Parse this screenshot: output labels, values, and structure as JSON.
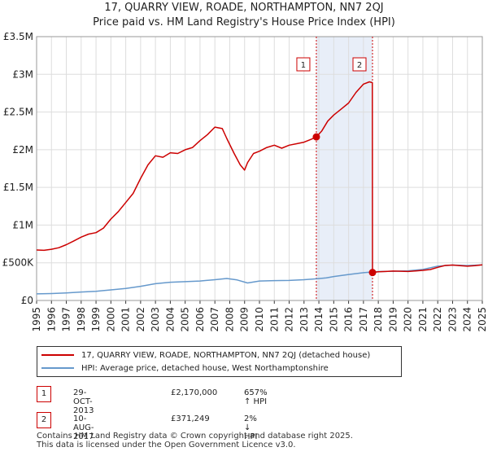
{
  "title_line1": "17, QUARRY VIEW, ROADE, NORTHAMPTON, NN7 2QJ",
  "title_line2": "Price paid vs. HM Land Registry's House Price Index (HPI)",
  "colors": {
    "property": "#cc0000",
    "hpi": "#6699cc",
    "grid": "#dddddd",
    "event_line": "#cc0000"
  },
  "chart_data": {
    "type": "line",
    "xlim": [
      1995,
      2025
    ],
    "ylim": [
      0,
      3500000
    ],
    "y_ticks": [
      0,
      500000,
      1000000,
      1500000,
      2000000,
      2500000,
      3000000,
      3500000
    ],
    "y_tick_labels": [
      "£0",
      "£500K",
      "£1M",
      "£1.5M",
      "£2M",
      "£2.5M",
      "£3M",
      "£3.5M"
    ],
    "x_ticks": [
      1995,
      1996,
      1997,
      1998,
      1999,
      2000,
      2001,
      2002,
      2003,
      2004,
      2005,
      2006,
      2007,
      2008,
      2009,
      2010,
      2011,
      2012,
      2013,
      2014,
      2015,
      2016,
      2017,
      2018,
      2019,
      2020,
      2021,
      2022,
      2023,
      2024,
      2025
    ],
    "x_tick_labels": [
      "1995",
      "1996",
      "1997",
      "1998",
      "1999",
      "2000",
      "2001",
      "2002",
      "2003",
      "2004",
      "2005",
      "2006",
      "2007",
      "2008",
      "2009",
      "2010",
      "2011",
      "2012",
      "2013",
      "2014",
      "2015",
      "2016",
      "2017",
      "2018",
      "2019",
      "2020",
      "2021",
      "2022",
      "2023",
      "2024",
      "2025"
    ],
    "shaded_period": [
      2013.83,
      2017.61
    ],
    "series": [
      {
        "name": "17, QUARRY VIEW, ROADE, NORTHAMPTON, NN7 2QJ (detached house)",
        "color": "#cc0000",
        "x": [
          1995.0,
          1995.5,
          1996.0,
          1996.5,
          1997.0,
          1997.5,
          1998.0,
          1998.5,
          1999.0,
          1999.5,
          2000.0,
          2000.5,
          2001.0,
          2001.5,
          2002.0,
          2002.5,
          2003.0,
          2003.5,
          2004.0,
          2004.5,
          2005.0,
          2005.5,
          2006.0,
          2006.5,
          2007.0,
          2007.5,
          2007.8,
          2008.3,
          2008.7,
          2009.0,
          2009.2,
          2009.6,
          2010.0,
          2010.5,
          2011.0,
          2011.5,
          2012.0,
          2012.5,
          2013.0,
          2013.5,
          2013.83,
          2014.2,
          2014.6,
          2015.0,
          2015.5,
          2016.0,
          2016.5,
          2017.0,
          2017.4,
          2017.6,
          2017.61,
          2018.0,
          2018.5,
          2019.0,
          2019.5,
          2020.0,
          2020.5,
          2021.0,
          2021.5,
          2022.0,
          2022.5,
          2023.0,
          2023.5,
          2024.0,
          2024.5,
          2025.0
        ],
        "values": [
          670000,
          665000,
          680000,
          700000,
          740000,
          790000,
          840000,
          880000,
          900000,
          960000,
          1080000,
          1180000,
          1300000,
          1420000,
          1620000,
          1800000,
          1920000,
          1900000,
          1960000,
          1950000,
          2000000,
          2030000,
          2120000,
          2200000,
          2300000,
          2280000,
          2150000,
          1950000,
          1800000,
          1730000,
          1830000,
          1950000,
          1980000,
          2030000,
          2060000,
          2020000,
          2060000,
          2080000,
          2100000,
          2140000,
          2170000,
          2250000,
          2380000,
          2460000,
          2540000,
          2620000,
          2760000,
          2870000,
          2900000,
          2890000,
          371249,
          380000,
          385000,
          390000,
          388000,
          385000,
          392000,
          400000,
          410000,
          440000,
          465000,
          470000,
          462000,
          455000,
          462000,
          472000
        ]
      },
      {
        "name": "HPI: Average price, detached house, West Northamptonshire",
        "color": "#6699cc",
        "x": [
          1995.0,
          1996.0,
          1997.0,
          1998.0,
          1999.0,
          2000.0,
          2001.0,
          2002.0,
          2003.0,
          2004.0,
          2005.0,
          2006.0,
          2007.0,
          2007.8,
          2008.5,
          2009.2,
          2010.0,
          2011.0,
          2012.0,
          2013.0,
          2013.83,
          2014.5,
          2015.0,
          2016.0,
          2017.0,
          2017.61,
          2018.0,
          2019.0,
          2020.0,
          2021.0,
          2022.0,
          2023.0,
          2024.0,
          2025.0
        ],
        "values": [
          88000,
          92000,
          100000,
          112000,
          122000,
          140000,
          160000,
          188000,
          222000,
          242000,
          250000,
          258000,
          275000,
          292000,
          272000,
          232000,
          258000,
          264000,
          266000,
          275000,
          287000,
          300000,
          318000,
          345000,
          368000,
          378000,
          384000,
          388000,
          393000,
          412000,
          455000,
          470000,
          463000,
          472000
        ]
      }
    ],
    "events": [
      {
        "label": "1",
        "x": 2013.83,
        "value": 2170000,
        "date": "29-OCT-2013",
        "price": "£2,170,000",
        "hpi": "657% ↑ HPI"
      },
      {
        "label": "2",
        "x": 2017.61,
        "value": 371249,
        "date": "10-AUG-2017",
        "price": "£371,249",
        "hpi": "2% ↓ HPI"
      }
    ]
  },
  "legend": {
    "property_label": "17, QUARRY VIEW, ROADE, NORTHAMPTON, NN7 2QJ (detached house)",
    "hpi_label": "HPI: Average price, detached house, West Northamptonshire"
  },
  "footer": {
    "line1": "Contains HM Land Registry data © Crown copyright and database right 2025.",
    "line2": "This data is licensed under the Open Government Licence v3.0."
  }
}
